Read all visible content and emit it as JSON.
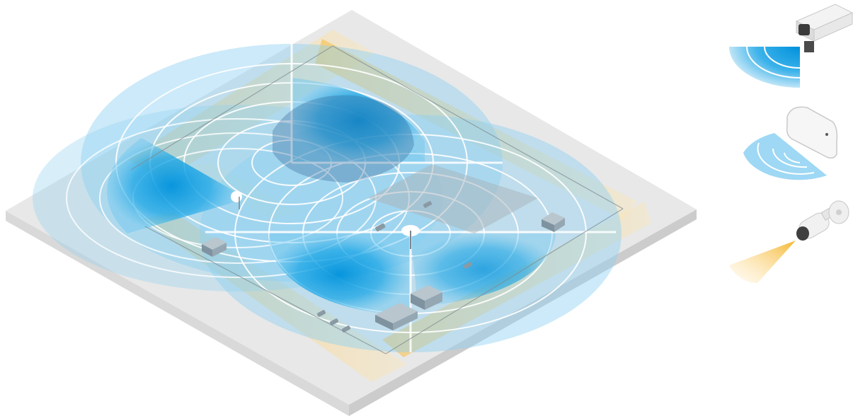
{
  "figure": {
    "background": "#ffffff",
    "ground_top": "#e9e9e9",
    "ground_side": "#d6d6d6",
    "coverage_color": "#0aa0e6",
    "fov_color": "#ffd27a",
    "fence_color": "#9aa4a8",
    "building_color": "#8fa2ae"
  },
  "legend": [
    {
      "device": "positioning-camera",
      "coverage": "blue-sector"
    },
    {
      "device": "radar",
      "coverage": "white-ring-sector"
    },
    {
      "device": "bullet-camera",
      "coverage": "yellow-cone"
    }
  ]
}
